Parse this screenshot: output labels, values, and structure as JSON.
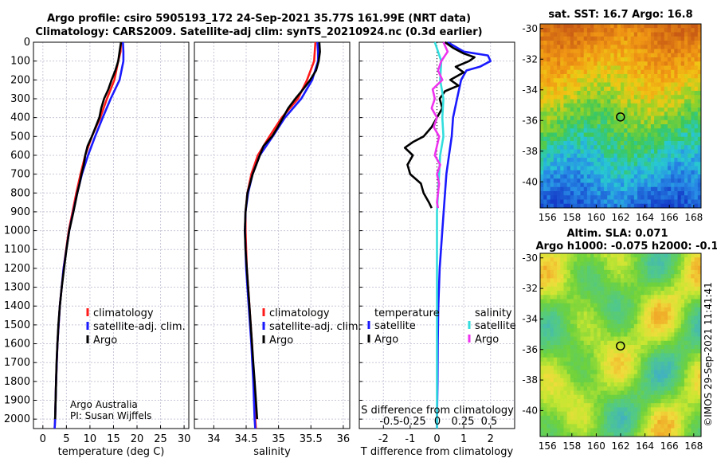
{
  "header": {
    "title_line1": "Argo profile: csiro 5905193_172 24-Sep-2021 35.77S 161.99E (NRT data)",
    "title_line2": "Climatology: CARS2009. Satellite-adj clim: synTS_20210924.nc (0.3d earlier)"
  },
  "colors": {
    "climatology": "#ff1a1a",
    "satellite": "#1a1aff",
    "argo": "#000000",
    "sat_salinity": "#33dddd",
    "argo_salinity": "#ee33ee"
  },
  "chart_data": [
    {
      "type": "line",
      "id": "temperature",
      "xlabel": "temperature (deg C)",
      "xlim": [
        -2,
        31
      ],
      "xticks": [
        0,
        5,
        10,
        15,
        20,
        25,
        30
      ],
      "ylim": [
        0,
        2050
      ],
      "yticks": [
        0,
        100,
        200,
        300,
        400,
        500,
        600,
        700,
        800,
        900,
        1000,
        1100,
        1200,
        1300,
        1400,
        1500,
        1600,
        1700,
        1800,
        1900,
        2000
      ],
      "legend": {
        "entries": [
          "climatology",
          "satellite-adj. clim.",
          "Argo"
        ],
        "location": "center-right"
      },
      "series": [
        {
          "name": "climatology",
          "color": "#ff1a1a",
          "depth": [
            0,
            50,
            100,
            200,
            300,
            400,
            500,
            600,
            700,
            800,
            1000,
            1200,
            1400,
            1600,
            1800,
            2000,
            2050
          ],
          "values": [
            16.6,
            16.5,
            16.0,
            15.2,
            13.6,
            12.2,
            10.4,
            9.0,
            8.0,
            7.1,
            5.5,
            4.4,
            3.6,
            3.1,
            2.8,
            2.6,
            2.5
          ]
        },
        {
          "name": "satellite-adj. clim.",
          "color": "#1a1aff",
          "depth": [
            0,
            50,
            100,
            200,
            300,
            400,
            500,
            600,
            700,
            800,
            1000,
            1200,
            1400,
            1600,
            1800,
            2000,
            2050
          ],
          "values": [
            17.0,
            17.1,
            17.1,
            16.3,
            14.4,
            12.7,
            11.1,
            9.6,
            8.3,
            7.3,
            5.6,
            4.4,
            3.6,
            3.1,
            2.8,
            2.6,
            2.5
          ]
        },
        {
          "name": "Argo",
          "color": "#000000",
          "depth": [
            0,
            50,
            100,
            150,
            200,
            250,
            300,
            350,
            400,
            450,
            500,
            550,
            600,
            650,
            700,
            750,
            800,
            900,
            1000,
            1100,
            1200,
            1300,
            1400,
            1500,
            1600,
            1700,
            1800,
            1900,
            2000
          ],
          "values": [
            16.6,
            16.3,
            16.0,
            15.4,
            14.6,
            13.9,
            13.0,
            12.4,
            12.0,
            11.2,
            10.4,
            9.5,
            9.0,
            8.7,
            8.2,
            7.8,
            7.3,
            6.5,
            5.6,
            5.0,
            4.5,
            4.0,
            3.6,
            3.3,
            3.1,
            2.9,
            2.8,
            2.7,
            2.6
          ]
        }
      ],
      "annotations": [
        "Argo Australia",
        "PI: Susan Wijffels"
      ]
    },
    {
      "type": "line",
      "id": "salinity",
      "xlabel": "salinity",
      "xlim": [
        33.7,
        36.1
      ],
      "xticks": [
        34,
        34.5,
        35,
        35.5,
        36
      ],
      "ylim": [
        0,
        2050
      ],
      "legend": {
        "entries": [
          "climatology",
          "satellite-adj. clim.",
          "Argo"
        ],
        "location": "center-right"
      },
      "series": [
        {
          "name": "climatology",
          "color": "#ff1a1a",
          "depth": [
            0,
            50,
            100,
            200,
            300,
            400,
            500,
            600,
            700,
            800,
            900,
            1000,
            1200,
            1400,
            1600,
            1800,
            2000,
            2050
          ],
          "values": [
            35.57,
            35.56,
            35.55,
            35.44,
            35.3,
            35.05,
            34.86,
            34.68,
            34.58,
            34.52,
            34.49,
            34.49,
            34.51,
            34.55,
            34.59,
            34.62,
            34.64,
            34.65
          ]
        },
        {
          "name": "satellite-adj. clim.",
          "color": "#1a1aff",
          "depth": [
            0,
            50,
            100,
            200,
            300,
            400,
            500,
            600,
            700,
            800,
            900,
            1000,
            1200,
            1400,
            1600,
            1800,
            2000,
            2050
          ],
          "values": [
            35.6,
            35.61,
            35.61,
            35.52,
            35.35,
            35.1,
            34.91,
            34.71,
            34.6,
            34.53,
            34.49,
            34.48,
            34.5,
            34.54,
            34.58,
            34.61,
            34.63,
            34.64
          ]
        },
        {
          "name": "Argo",
          "color": "#000000",
          "depth": [
            0,
            50,
            100,
            150,
            200,
            250,
            300,
            350,
            400,
            450,
            500,
            550,
            600,
            700,
            800,
            900,
            1000,
            1100,
            1200,
            1300,
            1400,
            1500,
            1600,
            1700,
            1800,
            1900,
            2000
          ],
          "values": [
            35.63,
            35.64,
            35.62,
            35.58,
            35.49,
            35.38,
            35.26,
            35.15,
            35.07,
            34.99,
            34.9,
            34.77,
            34.71,
            34.6,
            34.52,
            34.49,
            34.48,
            34.49,
            34.51,
            34.53,
            34.55,
            34.57,
            34.59,
            34.61,
            34.63,
            34.65,
            34.67
          ]
        }
      ]
    },
    {
      "type": "line",
      "id": "difference",
      "xlabel": "T difference from climatology",
      "xlabel_top": "S difference from climatology",
      "xlim": [
        -2.9,
        2.9
      ],
      "xticks": [
        -2,
        -1,
        0,
        1,
        2
      ],
      "xticks_top": [
        -0.5,
        -0.25,
        0,
        0.25,
        0.5
      ],
      "ylim": [
        0,
        2050
      ],
      "legend": {
        "headers": [
          "temperature",
          "salinity"
        ],
        "left": [
          "satellite",
          "Argo"
        ],
        "right": [
          "satellite",
          "Argo"
        ],
        "location": "center"
      },
      "series": [
        {
          "name": "temperature satellite",
          "color": "#1a1aff",
          "depth": [
            0,
            50,
            70,
            100,
            130,
            150,
            200,
            300,
            400,
            500,
            600,
            700,
            800,
            900,
            1000,
            1200,
            1400,
            1600,
            1800,
            2000,
            2050
          ],
          "values": [
            0.4,
            1.0,
            1.9,
            2.0,
            1.6,
            1.1,
            0.9,
            0.75,
            0.6,
            0.55,
            0.45,
            0.35,
            0.3,
            0.25,
            0.2,
            0.1,
            0.05,
            0.03,
            0.02,
            0.0,
            0.0
          ]
        },
        {
          "name": "temperature Argo",
          "color": "#000000",
          "depth": [
            0,
            30,
            60,
            80,
            100,
            130,
            160,
            200,
            230,
            260,
            300,
            350,
            400,
            450,
            500,
            530,
            560,
            600,
            650,
            700,
            750,
            800,
            850,
            880
          ],
          "values": [
            0.3,
            0.6,
            1.0,
            1.4,
            1.2,
            0.7,
            1.0,
            0.5,
            0.8,
            0.3,
            0.1,
            0.2,
            0.0,
            -0.2,
            -0.5,
            -0.9,
            -1.2,
            -0.9,
            -1.1,
            -1.0,
            -0.6,
            -0.5,
            -0.3,
            -0.2
          ]
        },
        {
          "name": "salinity satellite",
          "color": "#33dddd",
          "depth": [
            0,
            100,
            200,
            300,
            400,
            500,
            600,
            700,
            800,
            900,
            1000,
            1200,
            1400,
            1600,
            1800,
            2000,
            2050
          ],
          "values": [
            -0.02,
            0.04,
            0.03,
            0.06,
            0.05,
            0.06,
            0.03,
            0.02,
            0.01,
            0.0,
            0.0,
            0.0,
            0.0,
            0.0,
            0.0,
            0.0,
            0.0
          ]
        },
        {
          "name": "salinity Argo",
          "color": "#ee33ee",
          "depth": [
            0,
            50,
            100,
            150,
            200,
            250,
            300,
            350,
            400,
            450,
            500,
            550,
            600,
            650,
            700,
            750,
            800,
            850,
            880
          ],
          "values": [
            0.06,
            0.1,
            0.04,
            0.01,
            0.05,
            -0.04,
            -0.02,
            -0.05,
            0.0,
            -0.03,
            0.02,
            0.0,
            -0.02,
            0.03,
            0.0,
            0.02,
            0.01,
            0.0,
            0.01
          ]
        }
      ]
    },
    {
      "type": "heatmap",
      "id": "sst-map",
      "title": "sat. SST: 16.7 Argo: 16.8",
      "xlim": [
        155.4,
        168.6
      ],
      "ylim": [
        -41.7,
        -29.7
      ],
      "xticks": [
        156,
        158,
        160,
        162,
        164,
        166,
        168
      ],
      "yticks": [
        -30,
        -32,
        -34,
        -36,
        -38,
        -40
      ],
      "marker": {
        "lon": 161.99,
        "lat": -35.77
      }
    },
    {
      "type": "heatmap",
      "id": "sla-map",
      "title": "Altim. SLA: 0.071",
      "subtitle": "Argo h1000: -0.075 h2000: -0.1",
      "xlim": [
        155.4,
        168.6
      ],
      "ylim": [
        -41.7,
        -29.7
      ],
      "xticks": [
        156,
        158,
        160,
        162,
        164,
        166,
        168
      ],
      "yticks": [
        -30,
        -32,
        -34,
        -36,
        -38,
        -40
      ],
      "marker": {
        "lon": 161.99,
        "lat": -35.77
      }
    }
  ],
  "watermark": "©IMOS 29-Sep-2021 11:41:41"
}
